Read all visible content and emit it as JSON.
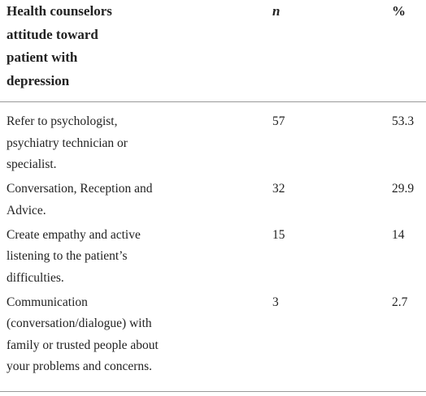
{
  "table": {
    "header": {
      "title": [
        "Health counselors",
        "attitude toward",
        "patient with",
        "depression"
      ],
      "n": "n",
      "percent": "%"
    },
    "rows": [
      {
        "label": [
          "Refer to psychologist,",
          "psychiatry technician or",
          "specialist."
        ],
        "n": "57",
        "percent": "53.3"
      },
      {
        "label": [
          "Conversation, Reception and",
          "Advice."
        ],
        "n": "32",
        "percent": "29.9"
      },
      {
        "label": [
          "Create empathy and active",
          "listening to the patient’s",
          "difficulties."
        ],
        "n": "15",
        "percent": "14"
      },
      {
        "label": [
          "Communication",
          "(conversation/dialogue) with",
          "family or trusted people about",
          "your problems and concerns."
        ],
        "n": "3",
        "percent": "2.7"
      }
    ]
  }
}
